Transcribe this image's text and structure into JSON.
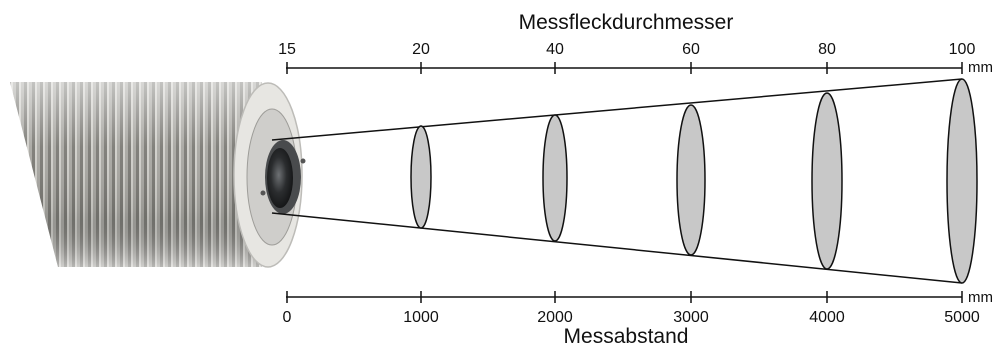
{
  "top_axis": {
    "title": "Messfleckdurchmesser",
    "unit": "mm",
    "ticks": [
      "15",
      "20",
      "40",
      "60",
      "80",
      "100"
    ]
  },
  "bottom_axis": {
    "title": "Messabstand",
    "unit": "mm",
    "ticks": [
      "0",
      "1000",
      "2000",
      "3000",
      "4000",
      "5000"
    ]
  },
  "spot_diameters_mm": [
    15,
    20,
    40,
    60,
    80,
    100
  ],
  "distances_mm": [
    0,
    1000,
    2000,
    3000,
    4000,
    5000
  ],
  "colors": {
    "spot_fill": "#c8c8c8",
    "line": "#111111",
    "sensor_metal": "#a7a6a1"
  }
}
